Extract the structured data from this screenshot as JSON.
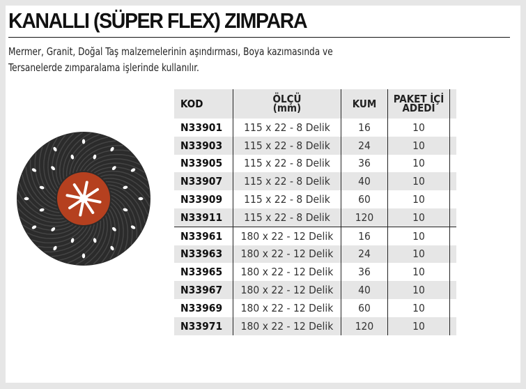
{
  "title": "KANALLI (SÜPER FLEX) ZIMPARA",
  "description": [
    "Mermer, Granit, Doğal Taş malzemelerinin aşındırması, Boya kazımasında ve",
    "Tersanelerde zımparalama işlerinde kullanılır."
  ],
  "table": {
    "headers": {
      "kod": "KOD",
      "olcu_1": "ÖLÇÜ",
      "olcu_2": "(mm)",
      "kum": "KUM",
      "paket_1": "PAKET İÇİ",
      "paket_2": "ADEDİ"
    },
    "rows": [
      {
        "kod": "N33901",
        "olcu": "115 x 22 - 8 Delik",
        "kum": "16",
        "adet": "10"
      },
      {
        "kod": "N33903",
        "olcu": "115 x 22 - 8 Delik",
        "kum": "24",
        "adet": "10"
      },
      {
        "kod": "N33905",
        "olcu": "115 x 22 - 8 Delik",
        "kum": "36",
        "adet": "10"
      },
      {
        "kod": "N33907",
        "olcu": "115 x 22 - 8 Delik",
        "kum": "40",
        "adet": "10"
      },
      {
        "kod": "N33909",
        "olcu": "115 x 22 - 8 Delik",
        "kum": "60",
        "adet": "10"
      },
      {
        "kod": "N33911",
        "olcu": "115 x 22 - 8 Delik",
        "kum": "120",
        "adet": "10"
      },
      {
        "kod": "N33961",
        "olcu": "180 x 22 - 12 Delik",
        "kum": "16",
        "adet": "10"
      },
      {
        "kod": "N33963",
        "olcu": "180 x 22 - 12 Delik",
        "kum": "24",
        "adet": "10"
      },
      {
        "kod": "N33965",
        "olcu": "180 x 22 - 12 Delik",
        "kum": "36",
        "adet": "10"
      },
      {
        "kod": "N33967",
        "olcu": "180 x 22 - 12 Delik",
        "kum": "40",
        "adet": "10"
      },
      {
        "kod": "N33969",
        "olcu": "180 x 22 - 12 Delik",
        "kum": "60",
        "adet": "10"
      },
      {
        "kod": "N33971",
        "olcu": "180 x 22 - 12 Delik",
        "kum": "120",
        "adet": "10"
      }
    ]
  },
  "colors": {
    "disc": "#2a2a2a",
    "hub": "#b5401f",
    "shade": "#e6e6e6"
  }
}
